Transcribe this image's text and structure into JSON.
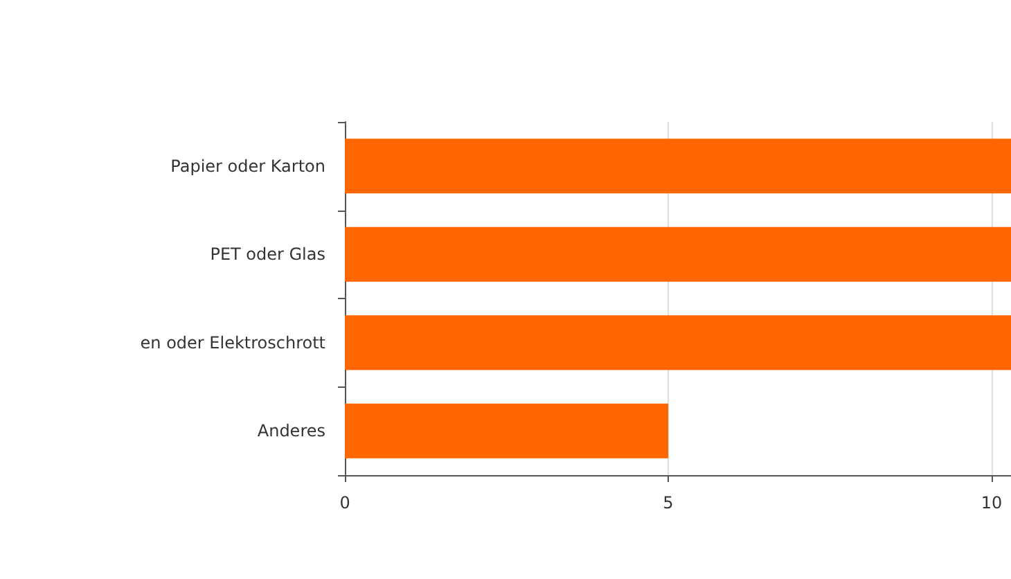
{
  "chart_data": {
    "type": "bar",
    "orientation": "horizontal",
    "categories": [
      "Papier oder Karton",
      "PET oder Glas",
      "en oder Elektroschrott",
      "Anderes"
    ],
    "values": [
      10.3,
      10.3,
      10.3,
      5
    ],
    "color": "#ff6600",
    "xlim": [
      0,
      10.3
    ],
    "xticks": [
      0,
      5,
      10
    ],
    "grid": "x"
  }
}
